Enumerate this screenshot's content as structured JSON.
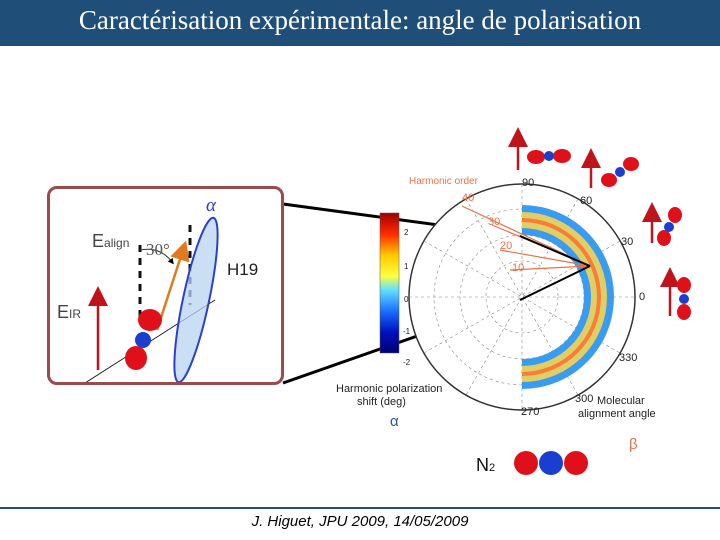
{
  "slide": {
    "title": "Caractérisation expérimentale: angle de polarisation",
    "footer": "J. Higuet, JPU 2009, 14/05/2009"
  },
  "diagram": {
    "e_align": {
      "base": "E",
      "sub": "align"
    },
    "angle": "30°",
    "alpha": "α",
    "e_ir": {
      "base": "E",
      "sub": "IR"
    },
    "harmonic": "H19"
  },
  "polar_plot": {
    "harmonic_order_title": "Harmonic order",
    "radial_labels": [
      "40",
      "30",
      "20",
      "10"
    ],
    "angle_labels": [
      "90",
      "60",
      "30",
      "0",
      "330",
      "300",
      "270"
    ],
    "colorbar_ticks": [
      "2",
      "1",
      "0",
      "-1",
      "-2"
    ],
    "colorbar_title_line1": "Harmonic polarization",
    "colorbar_title_line2": "shift (deg)",
    "alignment_label_line1": "Molecular",
    "alignment_label_line2": "alignment angle",
    "alpha_axis": "α",
    "beta_axis": "β",
    "molecule": {
      "base": "N",
      "sub": "2"
    }
  },
  "colors": {
    "title_bar": "#1f4e79",
    "frame": "#9b4b4b",
    "arrow_red": "#c0141c",
    "arrow_orange": "#e07a20",
    "plot_orange": "#e8734a",
    "molecule_red": "#e0101a",
    "molecule_blue": "#1a3fd0"
  }
}
